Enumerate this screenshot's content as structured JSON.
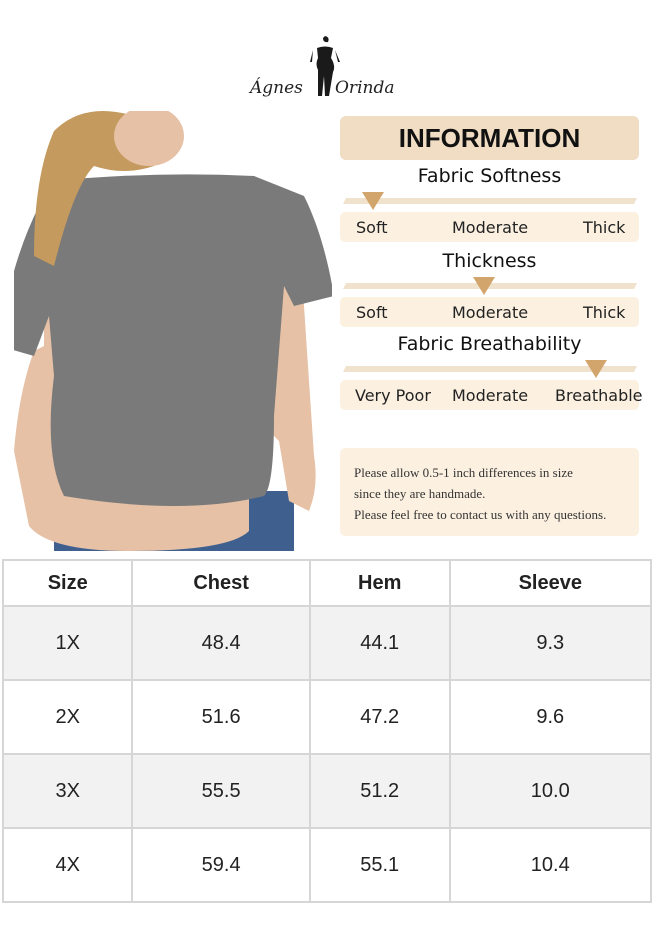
{
  "brand": {
    "name_left": "Ágnes",
    "name_right": "Orinda"
  },
  "info": {
    "title": "INFORMATION",
    "scales": [
      {
        "heading": "Fabric Softness",
        "labels": [
          "Soft",
          "Moderate",
          "Thick"
        ],
        "selected": "Soft",
        "level": 0.0
      },
      {
        "heading": "Thickness",
        "labels": [
          "Soft",
          "Moderate",
          "Thick"
        ],
        "selected": "Moderate",
        "level": 0.5
      },
      {
        "heading": "Fabric Breathability",
        "labels": [
          "Very Poor",
          "Moderate",
          "Breathable"
        ],
        "selected": "Breathable",
        "level": 0.9
      }
    ],
    "note": [
      "Please allow 0.5-1 inch differences in size",
      "since they are handmade.",
      "Please feel free to contact us with any questions."
    ],
    "accent": "#d2a56c",
    "panel_color": "#f1ddc4"
  },
  "size_table": {
    "headers": [
      "Size",
      "Chest",
      "Hem",
      "Sleeve"
    ],
    "rows": [
      [
        "1X",
        "48.4",
        "44.1",
        "9.3"
      ],
      [
        "2X",
        "51.6",
        "47.2",
        "9.6"
      ],
      [
        "3X",
        "55.5",
        "51.2",
        "10.0"
      ],
      [
        "4X",
        "59.4",
        "55.1",
        "10.4"
      ]
    ]
  }
}
